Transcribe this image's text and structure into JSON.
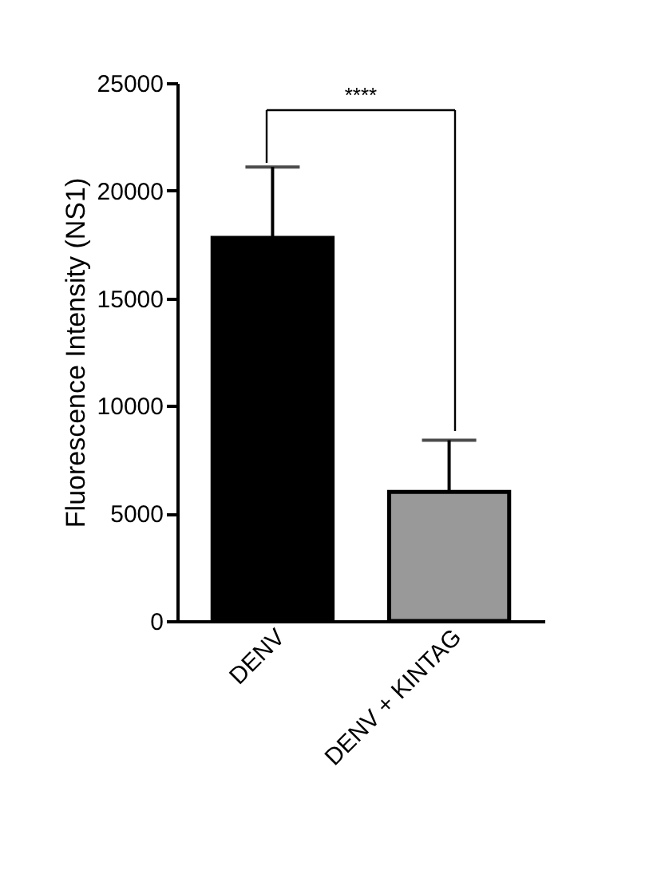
{
  "chart_data": {
    "type": "bar",
    "ylabel": "Fluorescence Intensity (NS1)",
    "categories": [
      "DENV",
      "DENV + KINTAG"
    ],
    "values": [
      17800,
      6000
    ],
    "colors": [
      "#000000",
      "#999999"
    ],
    "errors": [
      [
        17800,
        21100
      ],
      [
        6000,
        8400
      ]
    ],
    "ylim": [
      0,
      25000
    ],
    "yticks": [
      0,
      5000,
      10000,
      15000,
      20000,
      25000
    ],
    "grid": false,
    "annotations": [
      "****"
    ]
  }
}
